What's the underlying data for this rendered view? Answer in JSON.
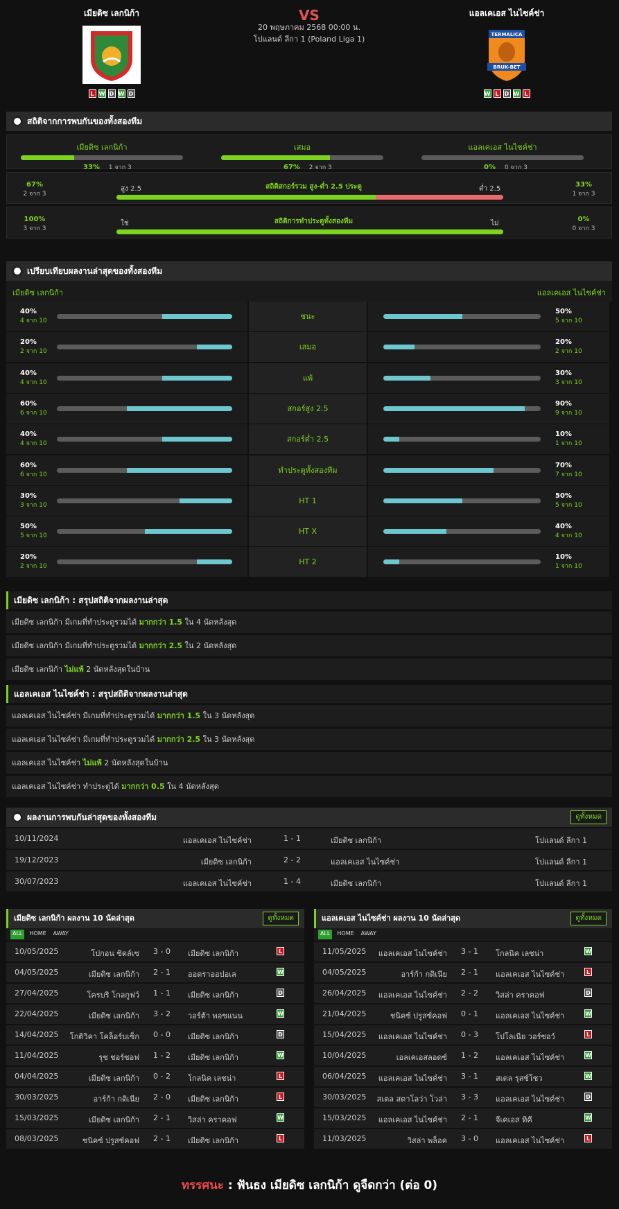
{
  "header": {
    "home_name": "เมียดิซ เลกนิก้า",
    "away_name": "แอลเคเอส ไนไซค์ช่า",
    "vs": "VS",
    "date": "20 พฤษภาคม 2568 00:00 น.",
    "league": "โปแลนด์ ลีกา 1 (Poland Liga 1)",
    "home_form": [
      "L",
      "W",
      "D",
      "W",
      "D"
    ],
    "away_form": [
      "W",
      "L",
      "D",
      "W",
      "L"
    ],
    "home_logo_text": "",
    "away_logo_text": "TERMALICA BRUK-BET"
  },
  "h2h_stats": {
    "title": "สถิติจากการพบกันของทั้งสองทีม",
    "cols": [
      {
        "label": "เมียดิซ เลกนิก้า",
        "pct": "33%",
        "sub": "1 จาก 3",
        "fill": 0.33
      },
      {
        "label": "เสมอ",
        "pct": "67%",
        "sub": "2 จาก 3",
        "fill": 0.67
      },
      {
        "label": "แอลเคเอส ไนไซค์ช่า",
        "pct": "0%",
        "sub": "0 จาก 3",
        "fill": 0
      }
    ],
    "ou": {
      "title": "สถิติสกอร์รวม สูง-ต่ำ 2.5 ประตู",
      "left_pct": "67%",
      "left_sub": "2 จาก 3",
      "left_label": "สูง 2.5",
      "right_label": "ต่ำ 2.5",
      "right_pct": "33%",
      "right_sub": "1 จาก 3",
      "fill": 0.67
    },
    "btts": {
      "title": "สถิติการทำประตูทั้งสองทีม",
      "left_pct": "100%",
      "left_sub": "3 จาก 3",
      "left_label": "ใช่",
      "right_label": "ไม่",
      "right_pct": "0%",
      "right_sub": "0 จาก 3",
      "fill": 1.0
    }
  },
  "compare": {
    "title": "เปรียบเทียบผลงานล่าสุดของทั้งสองทีม",
    "home": "เมียดิซ เลกนิก้า",
    "away": "แอลเคเอส ไนไซค์ช่า",
    "rows": [
      {
        "label": "ชนะ",
        "hp": "40%",
        "hs": "4 จาก 10",
        "hv": 0.4,
        "ap": "50%",
        "as": "5 จาก 10",
        "av": 0.5
      },
      {
        "label": "เสมอ",
        "hp": "20%",
        "hs": "2 จาก 10",
        "hv": 0.2,
        "ap": "20%",
        "as": "2 จาก 10",
        "av": 0.2
      },
      {
        "label": "แพ้",
        "hp": "40%",
        "hs": "4 จาก 10",
        "hv": 0.4,
        "ap": "30%",
        "as": "3 จาก 10",
        "av": 0.3
      },
      {
        "label": "สกอร์สูง 2.5",
        "hp": "60%",
        "hs": "6 จาก 10",
        "hv": 0.6,
        "ap": "90%",
        "as": "9 จาก 10",
        "av": 0.9
      },
      {
        "label": "สกอร์ต่ำ 2.5",
        "hp": "40%",
        "hs": "4 จาก 10",
        "hv": 0.4,
        "ap": "10%",
        "as": "1 จาก 10",
        "av": 0.1
      },
      {
        "label": "ทำประตูทั้งสองทีม",
        "hp": "60%",
        "hs": "6 จาก 10",
        "hv": 0.6,
        "ap": "70%",
        "as": "7 จาก 10",
        "av": 0.7
      },
      {
        "label": "HT 1",
        "hp": "30%",
        "hs": "3 จาก 10",
        "hv": 0.3,
        "ap": "50%",
        "as": "5 จาก 10",
        "av": 0.5
      },
      {
        "label": "HT X",
        "hp": "50%",
        "hs": "5 จาก 10",
        "hv": 0.5,
        "ap": "40%",
        "as": "4 จาก 10",
        "av": 0.4
      },
      {
        "label": "HT 2",
        "hp": "20%",
        "hs": "2 จาก 10",
        "hv": 0.2,
        "ap": "10%",
        "as": "1 จาก 10",
        "av": 0.1
      }
    ]
  },
  "home_summary": {
    "title": "เมียดิซ เลกนิก้า : สรุปสถิติจากผลงานล่าสุด",
    "lines": [
      {
        "pre": "เมียดิซ เลกนิก้า  มีเกมที่ทำประตูรวมได้ ",
        "hl": "มากกว่า 1.5",
        "post": " ใน 4 นัดหลังสุด"
      },
      {
        "pre": "เมียดิซ เลกนิก้า  มีเกมที่ทำประตูรวมได้ ",
        "hl": "มากกว่า 2.5",
        "post": " ใน 2 นัดหลังสุด"
      },
      {
        "pre": "เมียดิซ เลกนิก้า ",
        "hl": "ไม่แพ้",
        "post": " 2  นัดหลังสุดในบ้าน"
      }
    ]
  },
  "away_summary": {
    "title": "แอลเคเอส ไนไซค์ช่า : สรุปสถิติจากผลงานล่าสุด",
    "lines": [
      {
        "pre": "แอลเคเอส ไนไซค์ช่า  มีเกมที่ทำประตูรวมได้ ",
        "hl": "มากกว่า 1.5",
        "post": " ใน 3 นัดหลังสุด"
      },
      {
        "pre": "แอลเคเอส ไนไซค์ช่า  มีเกมที่ทำประตูรวมได้ ",
        "hl": "มากกว่า 2.5",
        "post": " ใน 3 นัดหลังสุด"
      },
      {
        "pre": "แอลเคเอส ไนไซค์ช่า ",
        "hl": "ไม่แพ้",
        "post": " 2  นัดหลังสุดในบ้าน"
      },
      {
        "pre": "แอลเคเอส ไนไซค์ช่า  ทำประตูได้ ",
        "hl": "มากกว่า  0.5",
        "post": " ใน 4 นัดหลังสุด"
      }
    ]
  },
  "h2h_matches": {
    "title": "ผลงานการพบกันล่าสุดของทั้งสองทีม",
    "view_all": "ดูทั้งหมด",
    "rows": [
      {
        "date": "10/11/2024",
        "home": "แอลเคเอส ไนไซค์ช่า",
        "score": "1 - 1",
        "away": "เมียดิซ เลกนิก้า",
        "league": "โปแลนด์ ลีกา 1"
      },
      {
        "date": "19/12/2023",
        "home": "เมียดิซ เลกนิก้า",
        "score": "2 - 2",
        "away": "แอลเคเอส ไนไซค์ช่า",
        "league": "โปแลนด์ ลีกา 1"
      },
      {
        "date": "30/07/2023",
        "home": "แอลเคเอส ไนไซค์ช่า",
        "score": "1 - 4",
        "away": "เมียดิซ เลกนิก้า",
        "league": "โปแลนด์ ลีกา 1"
      }
    ]
  },
  "home_last10": {
    "title": "เมียดิซ เลกนิก้า ผลงาน 10 นัดล่าสุด",
    "view_all": "ดูทั้งหมด",
    "tabs": [
      "ALL",
      "HOME",
      "AWAY"
    ],
    "rows": [
      {
        "date": "10/05/2025",
        "home": "โปกอน ซิดล์เซ",
        "score": "3 - 0",
        "away": "เมียดิซ เลกนิก้า",
        "r": "L"
      },
      {
        "date": "04/05/2025",
        "home": "เมียดิซ เลกนิก้า",
        "score": "2 - 1",
        "away": "ออดราออปอเล",
        "r": "W"
      },
      {
        "date": "27/04/2025",
        "home": "โครบริ โกลกูฟว์",
        "score": "1 - 1",
        "away": "เมียดิซ เลกนิก้า",
        "r": "D"
      },
      {
        "date": "22/04/2025",
        "home": "เมียดิซ เลกนิก้า",
        "score": "3 - 2",
        "away": "วอร์ต้า พอซแนน",
        "r": "W"
      },
      {
        "date": "14/04/2025",
        "home": "โกติวิคา โคล็อร์บเซ็ก",
        "score": "0 - 0",
        "away": "เมียดิซ เลกนิก้า",
        "r": "D"
      },
      {
        "date": "11/04/2025",
        "home": "รุช ชอร์ซอฟ",
        "score": "1 - 2",
        "away": "เมียดิซ เลกนิก้า",
        "r": "W"
      },
      {
        "date": "04/04/2025",
        "home": "เมียดิซ เลกนิก้า",
        "score": "0 - 2",
        "away": "โกลนิค เลชน่า",
        "r": "L"
      },
      {
        "date": "30/03/2025",
        "home": "อาร์ก้า กดิเนีย",
        "score": "2 - 0",
        "away": "เมียดิซ เลกนิก้า",
        "r": "L"
      },
      {
        "date": "15/03/2025",
        "home": "เมียดิซ เลกนิก้า",
        "score": "2 - 1",
        "away": "วิสล่า คราคอฟ",
        "r": "W"
      },
      {
        "date": "08/03/2025",
        "home": "ชนิคซ์ ปรูสซ์คอฟ",
        "score": "2 - 1",
        "away": "เมียดิซ เลกนิก้า",
        "r": "L"
      }
    ]
  },
  "away_last10": {
    "title": "แอลเคเอส ไนไซค์ช่า ผลงาน 10 นัดล่าสุด",
    "view_all": "ดูทั้งหมด",
    "tabs": [
      "ALL",
      "HOME",
      "AWAY"
    ],
    "rows": [
      {
        "date": "11/05/2025",
        "home": "แอลเคเอส ไนไซค์ช่า",
        "score": "3 - 1",
        "away": "โกลนิค เลชน่า",
        "r": "W"
      },
      {
        "date": "04/05/2025",
        "home": "อาร์ก้า กดิเนีย",
        "score": "2 - 1",
        "away": "แอลเคเอส ไนไซค์ช่า",
        "r": "L"
      },
      {
        "date": "26/04/2025",
        "home": "แอลเคเอส ไนไซค์ช่า",
        "score": "2 - 2",
        "away": "วิสล่า คราคอฟ",
        "r": "D"
      },
      {
        "date": "21/04/2025",
        "home": "ชนิคซ์ ปรูสซ์คอฟ",
        "score": "0 - 1",
        "away": "แอลเคเอส ไนไซค์ช่า",
        "r": "W"
      },
      {
        "date": "15/04/2025",
        "home": "แอลเคเอส ไนไซค์ช่า",
        "score": "0 - 3",
        "away": "โปโลเนีย วอร์ซอว์",
        "r": "L"
      },
      {
        "date": "10/04/2025",
        "home": "เอลเคเอสลอดซ์",
        "score": "1 - 2",
        "away": "แอลเคเอส ไนไซค์ช่า",
        "r": "W"
      },
      {
        "date": "06/04/2025",
        "home": "แอลเคเอส ไนไซค์ช่า",
        "score": "3 - 1",
        "away": "สเตล รุสซ์โซว",
        "r": "W"
      },
      {
        "date": "30/03/2025",
        "home": "สเตล สตาโลว่า โวล่า",
        "score": "3 - 3",
        "away": "แอลเคเอส ไนไซค์ช่า",
        "r": "D"
      },
      {
        "date": "15/03/2025",
        "home": "แอลเคเอส ไนไซค์ช่า",
        "score": "2 - 1",
        "away": "จีเคเอส ทิคี",
        "r": "W"
      },
      {
        "date": "11/03/2025",
        "home": "วิสล่า พล็อค",
        "score": "3 - 0",
        "away": "แอลเคเอส ไนไซค์ช่า",
        "r": "L"
      }
    ]
  },
  "footer": {
    "label": "ทรรศนะ",
    "sep": " : ",
    "text": " ฟันธง เมียดิซ เลกนิก้า ดูจืดกว่า (ต่อ 0)"
  }
}
